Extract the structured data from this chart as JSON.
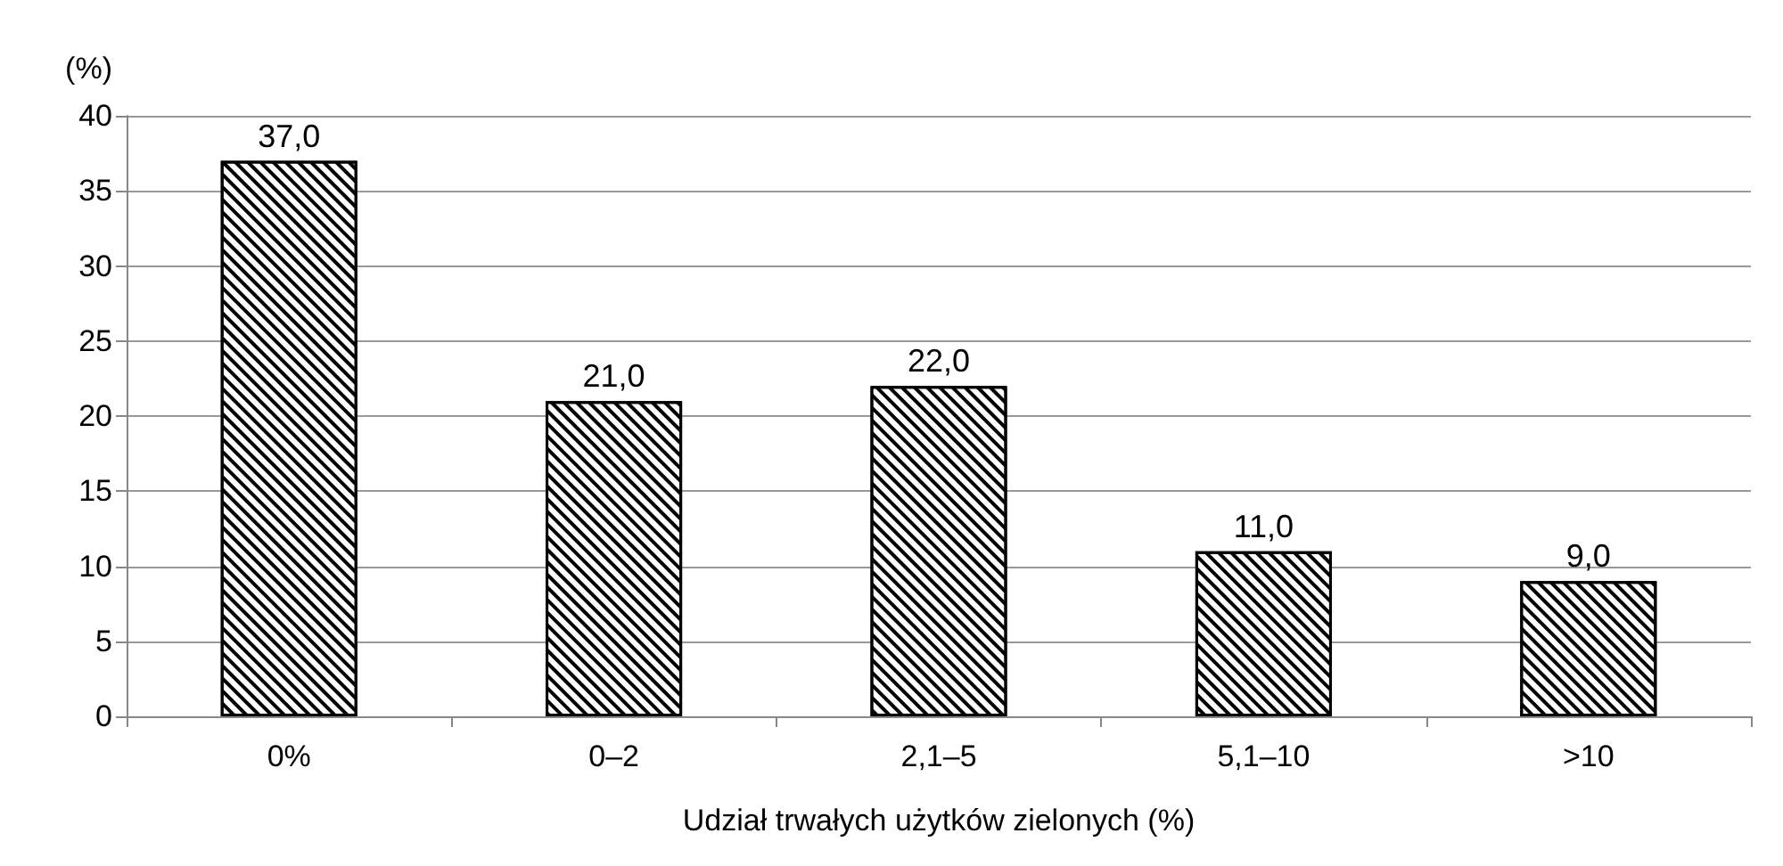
{
  "chart_data": {
    "type": "bar",
    "ylabel": "(%)",
    "xlabel": "Udział trwałych użytków zielonych (%)",
    "categories": [
      "0%",
      "0–2",
      "2,1–5",
      "5,1–10",
      ">10"
    ],
    "values": [
      37,
      21,
      22,
      11,
      9
    ],
    "value_labels": [
      "37,0",
      "21,0",
      "22,0",
      "11,0",
      "9,0"
    ],
    "color": "#000000",
    "ylim": [
      0,
      40
    ],
    "yticks": [
      0,
      5,
      10,
      15,
      20,
      25,
      30,
      35,
      40
    ],
    "grid": "y"
  }
}
